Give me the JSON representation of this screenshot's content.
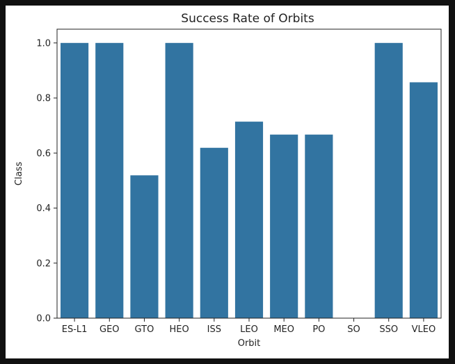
{
  "chart_data": {
    "type": "bar",
    "title": "Success Rate of Orbits",
    "xlabel": "Orbit",
    "ylabel": "Class",
    "categories": [
      "ES-L1",
      "GEO",
      "GTO",
      "HEO",
      "ISS",
      "LEO",
      "MEO",
      "PO",
      "SO",
      "SSO",
      "VLEO"
    ],
    "values": [
      1.0,
      1.0,
      0.519,
      1.0,
      0.619,
      0.714,
      0.667,
      0.667,
      0.0,
      1.0,
      0.857
    ],
    "ylim": [
      0,
      1.05
    ],
    "yticks": [
      "0.0",
      "0.2",
      "0.4",
      "0.6",
      "0.8",
      "1.0"
    ],
    "bar_color": "#3274a1",
    "grid": false,
    "legend": "none"
  }
}
